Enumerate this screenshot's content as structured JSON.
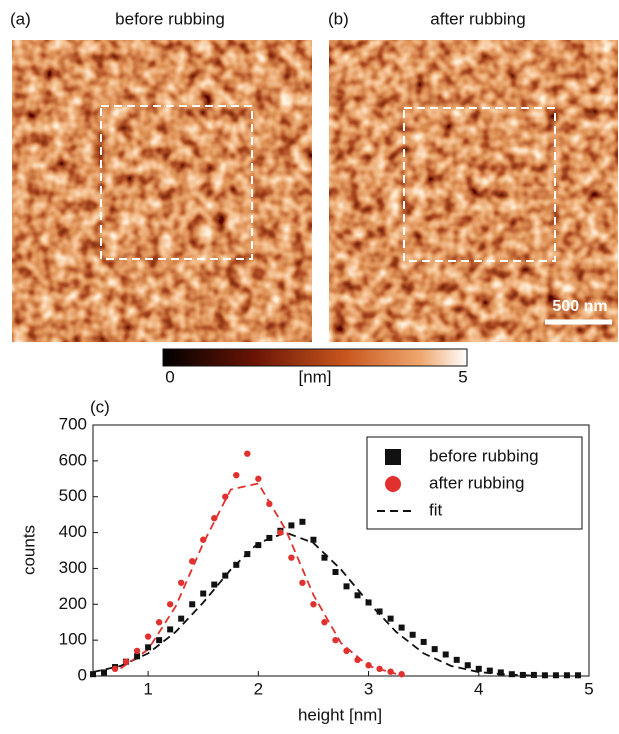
{
  "panels": [
    {
      "label": "(a)",
      "title": "before rubbing"
    },
    {
      "label": "(b)",
      "title": "after rubbing",
      "scale_bar": "500 nm"
    }
  ],
  "colorbar": {
    "min_label": "0",
    "unit": "[nm]",
    "max_label": "5"
  },
  "chart_data": {
    "type": "scatter",
    "panel_label": "(c)",
    "x_label": "height [nm]",
    "y_label": "counts",
    "xlim": [
      0.5,
      5
    ],
    "xticks": [
      1,
      2,
      3,
      4,
      5
    ],
    "ylim": [
      0,
      700
    ],
    "yticks": [
      0,
      100,
      200,
      300,
      400,
      500,
      600,
      700
    ],
    "legend": "upper right",
    "series": [
      {
        "name": "before rubbing",
        "color": "#111111",
        "marker": "square",
        "x": [
          0.5,
          0.6,
          0.7,
          0.8,
          0.9,
          1.0,
          1.1,
          1.2,
          1.3,
          1.4,
          1.5,
          1.6,
          1.7,
          1.8,
          1.9,
          2.0,
          2.1,
          2.2,
          2.3,
          2.4,
          2.5,
          2.6,
          2.7,
          2.8,
          2.9,
          3.0,
          3.1,
          3.2,
          3.3,
          3.4,
          3.5,
          3.6,
          3.7,
          3.8,
          3.9,
          4.0,
          4.1,
          4.2,
          4.3,
          4.4,
          4.5,
          4.6,
          4.7,
          4.8,
          4.9
        ],
        "values": [
          5,
          10,
          25,
          40,
          55,
          80,
          100,
          130,
          160,
          200,
          230,
          255,
          280,
          310,
          340,
          365,
          385,
          405,
          420,
          430,
          380,
          330,
          290,
          250,
          225,
          205,
          180,
          160,
          135,
          115,
          95,
          75,
          60,
          45,
          30,
          20,
          15,
          10,
          5,
          3,
          3,
          2,
          2,
          2,
          2
        ]
      },
      {
        "name": "after rubbing",
        "color": "#e0312f",
        "marker": "circle",
        "x": [
          0.7,
          0.8,
          0.9,
          1.0,
          1.1,
          1.2,
          1.3,
          1.4,
          1.5,
          1.6,
          1.7,
          1.8,
          1.9,
          2.0,
          2.1,
          2.2,
          2.3,
          2.4,
          2.5,
          2.6,
          2.7,
          2.8,
          2.9,
          3.0,
          3.1,
          3.2,
          3.3
        ],
        "values": [
          20,
          40,
          70,
          110,
          150,
          200,
          260,
          320,
          380,
          440,
          500,
          560,
          620,
          550,
          480,
          400,
          330,
          260,
          200,
          150,
          100,
          70,
          45,
          30,
          20,
          12,
          5
        ]
      }
    ],
    "fit": {
      "name": "fit",
      "color": "#111111",
      "curves": [
        {
          "color": "#111111",
          "x": [
            0.5,
            0.75,
            1.0,
            1.25,
            1.5,
            1.75,
            2.0,
            2.25,
            2.5,
            2.75,
            3.0,
            3.25,
            3.5,
            3.75,
            4.0,
            4.25,
            4.5
          ],
          "values": [
            11,
            28,
            63,
            123,
            205,
            297,
            371,
            400,
            371,
            297,
            205,
            123,
            63,
            28,
            11,
            4,
            1
          ]
        },
        {
          "color": "#e0312f",
          "x": [
            0.75,
            1.0,
            1.25,
            1.5,
            1.75,
            2.0,
            2.25,
            2.5,
            2.75,
            3.0,
            3.25
          ],
          "values": [
            21,
            74,
            194,
            370,
            520,
            537,
            407,
            226,
            92,
            28,
            6
          ]
        }
      ]
    }
  }
}
